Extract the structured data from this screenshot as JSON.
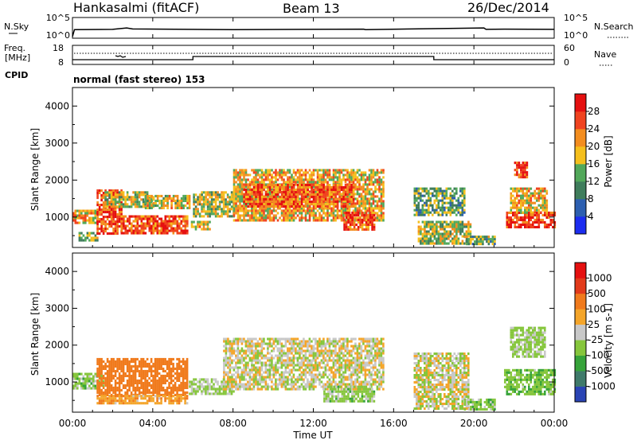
{
  "header": {
    "station": "Hankasalmi (fitACF)",
    "beam": "Beam 13",
    "date": "26/Dec/2014"
  },
  "noise_panel": {
    "left_label": "N.Sky",
    "right_label": "N.Search",
    "left_ticks": [
      "10^5",
      "10^0"
    ],
    "right_ticks": [
      "10^5",
      "10^0"
    ]
  },
  "freq_panel": {
    "left_label_line1": "Freq.",
    "left_label_line2": "[MHz]",
    "right_label": "Nave",
    "left_ticks": [
      "18",
      "8"
    ],
    "right_ticks": [
      "60",
      "0"
    ]
  },
  "cpid": {
    "label": "CPID",
    "value": "normal (fast stereo) 153"
  },
  "axes": {
    "ylabel": "Slant Range [km]",
    "xlabel": "Time UT",
    "yticks": [
      "1000",
      "2000",
      "3000",
      "4000"
    ],
    "xticks": [
      "00:00",
      "04:00",
      "08:00",
      "12:00",
      "16:00",
      "20:00",
      "00:00"
    ]
  },
  "colorbars": {
    "power": {
      "label": "Power [dB]",
      "ticks": [
        "4",
        "8",
        "12",
        "16",
        "20",
        "24",
        "28"
      ],
      "colors": [
        "#1c2df0",
        "#2d5fb0",
        "#3f7d5c",
        "#52a85a",
        "#f5bf1c",
        "#f38d1f",
        "#f0431f",
        "#e51010"
      ]
    },
    "velocity": {
      "label": "Velocity [m s-1]",
      "ticks": [
        "1000",
        "500",
        "100",
        "25",
        "-25",
        "-100",
        "-500",
        "-1000"
      ],
      "colors": [
        "#2a44b4",
        "#3f7a6a",
        "#36a33a",
        "#86c63c",
        "#c8c8c8",
        "#f4a52a",
        "#f07a1c",
        "#e23a1a",
        "#e51010"
      ]
    }
  },
  "chart_data": [
    {
      "type": "heatmap",
      "title": "Power",
      "xlabel": "Time UT",
      "ylabel": "Slant Range [km]",
      "xlim": [
        0,
        24
      ],
      "ylim": [
        180,
        4500
      ],
      "colorbar_label": "Power [dB]",
      "colorbar_range": [
        0,
        30
      ],
      "regions": [
        {
          "t0": 0.0,
          "t1": 1.2,
          "r0": 850,
          "r1": 1200,
          "db": 20
        },
        {
          "t0": 0.3,
          "t1": 1.2,
          "r0": 350,
          "r1": 600,
          "db": 14
        },
        {
          "t0": 1.2,
          "t1": 2.4,
          "r0": 550,
          "r1": 1750,
          "db": 27
        },
        {
          "t0": 2.4,
          "t1": 5.7,
          "r0": 550,
          "r1": 1050,
          "db": 26
        },
        {
          "t0": 1.6,
          "t1": 4.0,
          "r0": 1250,
          "r1": 1700,
          "db": 16
        },
        {
          "t0": 3.6,
          "t1": 5.8,
          "r0": 1250,
          "r1": 1600,
          "db": 18
        },
        {
          "t0": 5.9,
          "t1": 6.8,
          "r0": 700,
          "r1": 900,
          "db": 18
        },
        {
          "t0": 6.0,
          "t1": 8.0,
          "r0": 1050,
          "r1": 1700,
          "db": 16
        },
        {
          "t0": 8.0,
          "t1": 15.5,
          "r0": 900,
          "r1": 2300,
          "db": 20
        },
        {
          "t0": 8.5,
          "t1": 14.0,
          "r0": 1300,
          "r1": 1900,
          "db": 25
        },
        {
          "t0": 13.5,
          "t1": 15.0,
          "r0": 650,
          "r1": 1150,
          "db": 26
        },
        {
          "t0": 17.0,
          "t1": 19.5,
          "r0": 1050,
          "r1": 1800,
          "db": 13
        },
        {
          "t0": 17.2,
          "t1": 19.8,
          "r0": 300,
          "r1": 900,
          "db": 16
        },
        {
          "t0": 19.5,
          "t1": 21.0,
          "r0": 250,
          "r1": 500,
          "db": 14
        },
        {
          "t0": 21.6,
          "t1": 24.0,
          "r0": 700,
          "r1": 1150,
          "db": 28
        },
        {
          "t0": 21.8,
          "t1": 23.6,
          "r0": 1150,
          "r1": 1800,
          "db": 20
        },
        {
          "t0": 22.0,
          "t1": 22.6,
          "r0": 2100,
          "r1": 2500,
          "db": 27
        }
      ]
    },
    {
      "type": "heatmap",
      "title": "Velocity",
      "xlabel": "Time UT",
      "ylabel": "Slant Range [km]",
      "xlim": [
        0,
        24
      ],
      "ylim": [
        180,
        4500
      ],
      "colorbar_label": "Velocity [m s-1]",
      "colorbar_range": [
        -1000,
        1000
      ],
      "regions": [
        {
          "t0": 0.0,
          "t1": 1.5,
          "r0": 850,
          "r1": 1250,
          "vel": 60
        },
        {
          "t0": 1.2,
          "t1": 5.7,
          "r0": 650,
          "r1": 1650,
          "vel": -200
        },
        {
          "t0": 1.2,
          "t1": 5.7,
          "r0": 400,
          "r1": 650,
          "vel": -80
        },
        {
          "t0": 5.8,
          "t1": 8.0,
          "r0": 650,
          "r1": 1100,
          "vel": 40
        },
        {
          "t0": 7.5,
          "t1": 15.5,
          "r0": 800,
          "r1": 2200,
          "vel": 0
        },
        {
          "t0": 12.5,
          "t1": 15.0,
          "r0": 500,
          "r1": 900,
          "vel": 50
        },
        {
          "t0": 17.0,
          "t1": 19.7,
          "r0": 300,
          "r1": 1800,
          "vel": 0
        },
        {
          "t0": 19.5,
          "t1": 21.0,
          "r0": 250,
          "r1": 550,
          "vel": 60
        },
        {
          "t0": 21.5,
          "t1": 24.0,
          "r0": 650,
          "r1": 1350,
          "vel": 80
        },
        {
          "t0": 21.8,
          "t1": 23.5,
          "r0": 1700,
          "r1": 2500,
          "vel": 40
        }
      ]
    },
    {
      "type": "line",
      "title": "N.Sky",
      "x": [
        0,
        0.1,
        2,
        2.7,
        3,
        8,
        14.5,
        14.6,
        20.5,
        20.6,
        21.5,
        24
      ],
      "y": [
        1,
        100,
        120,
        300,
        150,
        100,
        140,
        100,
        300,
        120,
        140,
        120
      ],
      "yscale": "log"
    },
    {
      "type": "line",
      "title": "Freq.",
      "x": [
        0,
        6,
        6,
        18,
        18,
        24
      ],
      "y": [
        10.0,
        10.0,
        12.0,
        12.0,
        10.0,
        10.0
      ],
      "ylim": [
        8,
        18
      ]
    }
  ]
}
